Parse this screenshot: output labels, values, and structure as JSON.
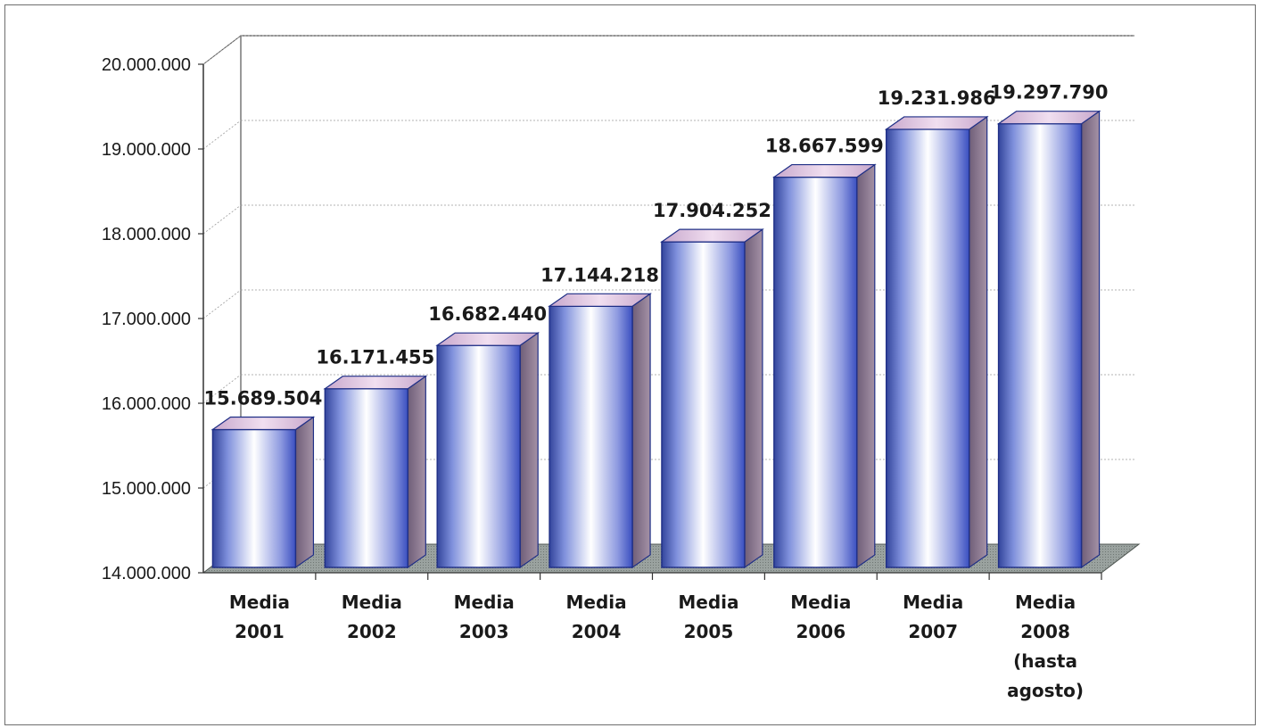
{
  "chart_data": {
    "type": "bar",
    "title": "",
    "xlabel": "",
    "ylabel": "",
    "categories": [
      [
        "Media",
        "2001"
      ],
      [
        "Media",
        "2002"
      ],
      [
        "Media",
        "2003"
      ],
      [
        "Media",
        "2004"
      ],
      [
        "Media",
        "2005"
      ],
      [
        "Media",
        "2006"
      ],
      [
        "Media",
        "2007"
      ],
      [
        "Media",
        "2008",
        "(hasta",
        "agosto)"
      ]
    ],
    "values": [
      15689504,
      16171455,
      16682440,
      17144218,
      17904252,
      18667599,
      19231986,
      19297790
    ],
    "value_labels": [
      "15.689.504",
      "16.171.455",
      "16.682.440",
      "17.144.218",
      "17.904.252",
      "18.667.599",
      "19.231.986",
      "19.297.790"
    ],
    "ylim": [
      14000000,
      20000000
    ],
    "yticks": [
      14000000,
      15000000,
      16000000,
      17000000,
      18000000,
      19000000,
      20000000
    ],
    "ytick_labels": [
      "14.000.000",
      "15.000.000",
      "16.000.000",
      "17.000.000",
      "18.000.000",
      "19.000.000",
      "20.000.000"
    ],
    "grid": true,
    "style": "3d-cylinder-bars",
    "colors": {
      "bar_edge": "#1f2f86",
      "bar_light": "#ffffff",
      "bar_dark": "#3a4fc0",
      "bar_side": "#8c7890",
      "bar_top": "#d8b7d8",
      "floor": "#8f9894"
    }
  }
}
